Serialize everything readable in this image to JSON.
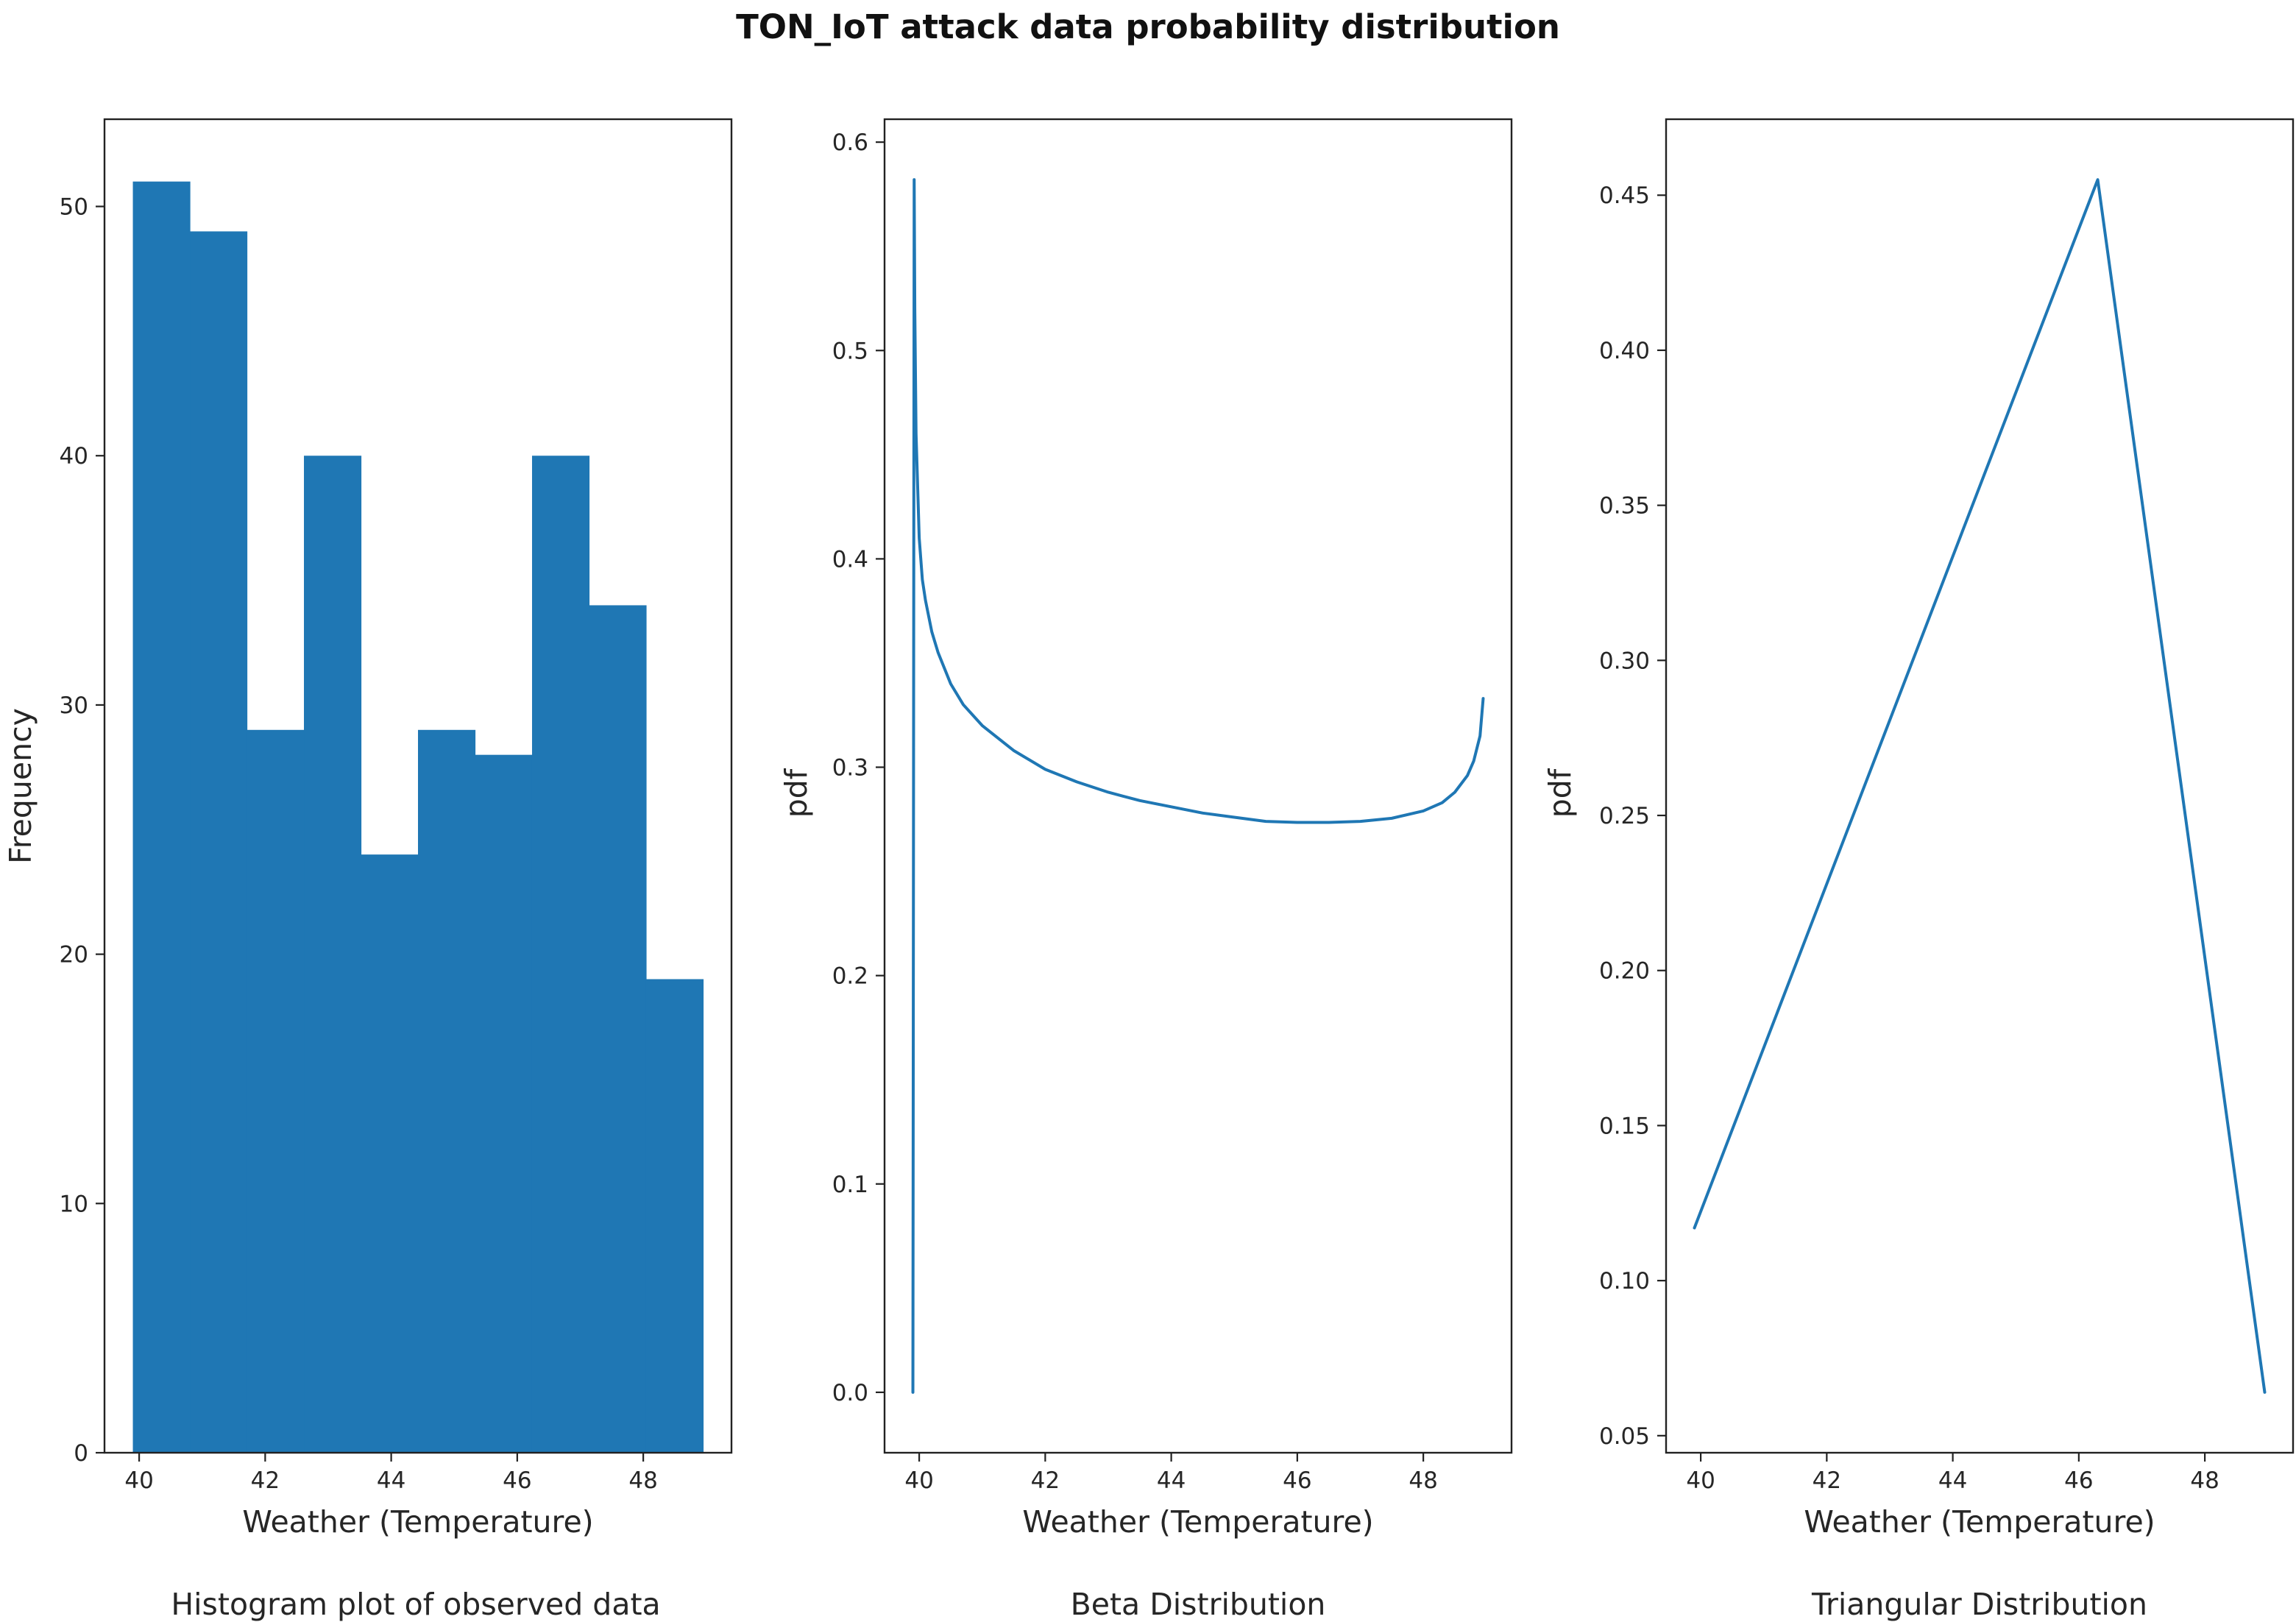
{
  "figure": {
    "title": "TON_IoT attack data probability distribution",
    "accent_color": "#1f77b4"
  },
  "chart_data": [
    {
      "type": "bar",
      "subtype": "histogram",
      "caption": "Histogram plot of observed data",
      "xlabel": "Weather (Temperature)",
      "ylabel": "Frequency",
      "bin_edges": [
        39.9,
        40.805,
        41.71,
        42.615,
        43.52,
        44.425,
        45.33,
        46.235,
        47.14,
        48.045,
        48.95
      ],
      "values": [
        51,
        49,
        29,
        40,
        24,
        29,
        28,
        40,
        34,
        19
      ],
      "xlim": [
        39.45,
        49.4
      ],
      "ylim": [
        0,
        53.5
      ],
      "xticks": [
        40,
        42,
        44,
        46,
        48
      ],
      "yticks": [
        0,
        10,
        20,
        30,
        40,
        50
      ],
      "color": "#1f77b4"
    },
    {
      "type": "line",
      "caption": "Beta Distribution",
      "xlabel": "Weather (Temperature)",
      "ylabel": "pdf",
      "x": [
        39.9,
        39.92,
        39.93,
        39.95,
        39.98,
        40.0,
        40.05,
        40.1,
        40.2,
        40.3,
        40.5,
        40.7,
        41.0,
        41.5,
        42.0,
        42.5,
        43.0,
        43.5,
        44.0,
        44.5,
        45.0,
        45.5,
        46.0,
        46.5,
        47.0,
        47.5,
        48.0,
        48.3,
        48.5,
        48.7,
        48.8,
        48.9,
        48.95
      ],
      "y": [
        0.0,
        0.582,
        0.52,
        0.46,
        0.43,
        0.41,
        0.39,
        0.38,
        0.365,
        0.355,
        0.34,
        0.33,
        0.32,
        0.308,
        0.299,
        0.293,
        0.288,
        0.284,
        0.281,
        0.278,
        0.276,
        0.274,
        0.2735,
        0.2735,
        0.274,
        0.2755,
        0.279,
        0.283,
        0.288,
        0.296,
        0.303,
        0.315,
        0.333
      ],
      "xlim": [
        39.45,
        49.4
      ],
      "ylim": [
        -0.029,
        0.611
      ],
      "xticks": [
        40,
        42,
        44,
        46,
        48
      ],
      "yticks": [
        0.0,
        0.1,
        0.2,
        0.3,
        0.4,
        0.5,
        0.6
      ],
      "color": "#1f77b4"
    },
    {
      "type": "line",
      "caption": "Triangular Distribution",
      "xlabel": "Weather (Temperature)",
      "ylabel": "pdf",
      "x": [
        39.9,
        46.3,
        48.95
      ],
      "y": [
        0.117,
        0.455,
        0.064
      ],
      "xlim": [
        39.45,
        49.4
      ],
      "ylim": [
        0.0445,
        0.4745
      ],
      "xticks": [
        40,
        42,
        44,
        46,
        48
      ],
      "yticks": [
        0.05,
        0.1,
        0.15,
        0.2,
        0.25,
        0.3,
        0.35,
        0.4,
        0.45
      ],
      "color": "#1f77b4"
    }
  ]
}
